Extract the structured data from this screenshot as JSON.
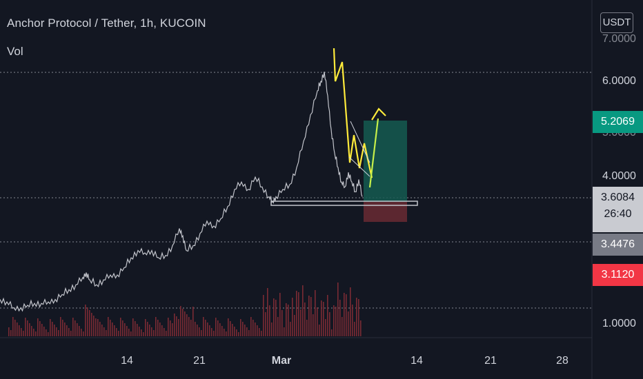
{
  "header": {
    "title": "Anchor Protocol / Tether, 1h, KUCOIN",
    "indicator": "Vol",
    "currency": "USDT"
  },
  "price_tags": {
    "target": "5.2069",
    "current": "3.6084",
    "countdown": "26:40",
    "level": "3.4476",
    "stop": "3.1120"
  },
  "colors": {
    "background": "#131722",
    "price_line": "#c3c5cc",
    "drawing": "#ffeb3b",
    "projection": "#c6f04a",
    "profit_zone": "#155a50",
    "loss_zone": "#6a2a33",
    "target_tag": "#089981",
    "stop_tag": "#f23645",
    "current_tag": "#c9cbd1",
    "level_tag": "#787b86"
  },
  "chart_data": {
    "type": "line",
    "title": "Anchor Protocol / Tether, 1h, KUCOIN",
    "xlabel": "",
    "ylabel": "",
    "x_ticks": [
      "14",
      "21",
      "Mar",
      "14",
      "21",
      "28"
    ],
    "y_ticks": [
      1.0,
      4.0,
      6.0
    ],
    "ylim": [
      0.6,
      7.5
    ],
    "grid": false,
    "series": [
      {
        "x": [
          0,
          10,
          20,
          30,
          40,
          50,
          60,
          70,
          80,
          90,
          100,
          110,
          120,
          125,
          130,
          140,
          150,
          160,
          170,
          180,
          190,
          200,
          210,
          220,
          230,
          240,
          250,
          260,
          265,
          270,
          280,
          290,
          300,
          310,
          320,
          330,
          340,
          350,
          360,
          370,
          380,
          390,
          395,
          400,
          410,
          420,
          430,
          440,
          450,
          460,
          465,
          470,
          475,
          480,
          485,
          490,
          495,
          500,
          505,
          510,
          515,
          520,
          525
        ],
        "values": [
          1.5,
          1.45,
          1.33,
          1.33,
          1.38,
          1.42,
          1.42,
          1.45,
          1.5,
          1.6,
          1.7,
          1.8,
          1.95,
          2.05,
          1.9,
          1.8,
          1.9,
          2.0,
          2.0,
          2.15,
          2.35,
          2.5,
          2.45,
          2.5,
          2.35,
          2.4,
          2.6,
          2.95,
          2.8,
          2.5,
          2.6,
          2.85,
          3.1,
          3.0,
          3.15,
          3.4,
          3.75,
          3.9,
          3.75,
          4.0,
          3.8,
          3.6,
          3.5,
          3.6,
          3.75,
          3.85,
          4.2,
          4.75,
          5.3,
          5.8,
          6.0,
          6.2,
          5.7,
          5.0,
          4.5,
          4.2,
          3.9,
          3.8,
          4.1,
          3.9,
          3.7,
          3.95,
          3.6
        ]
      }
    ],
    "annotations": {
      "resistance_level": 3.6084,
      "support_level": 3.4476,
      "target": 5.2069,
      "stop": 3.112
    }
  }
}
